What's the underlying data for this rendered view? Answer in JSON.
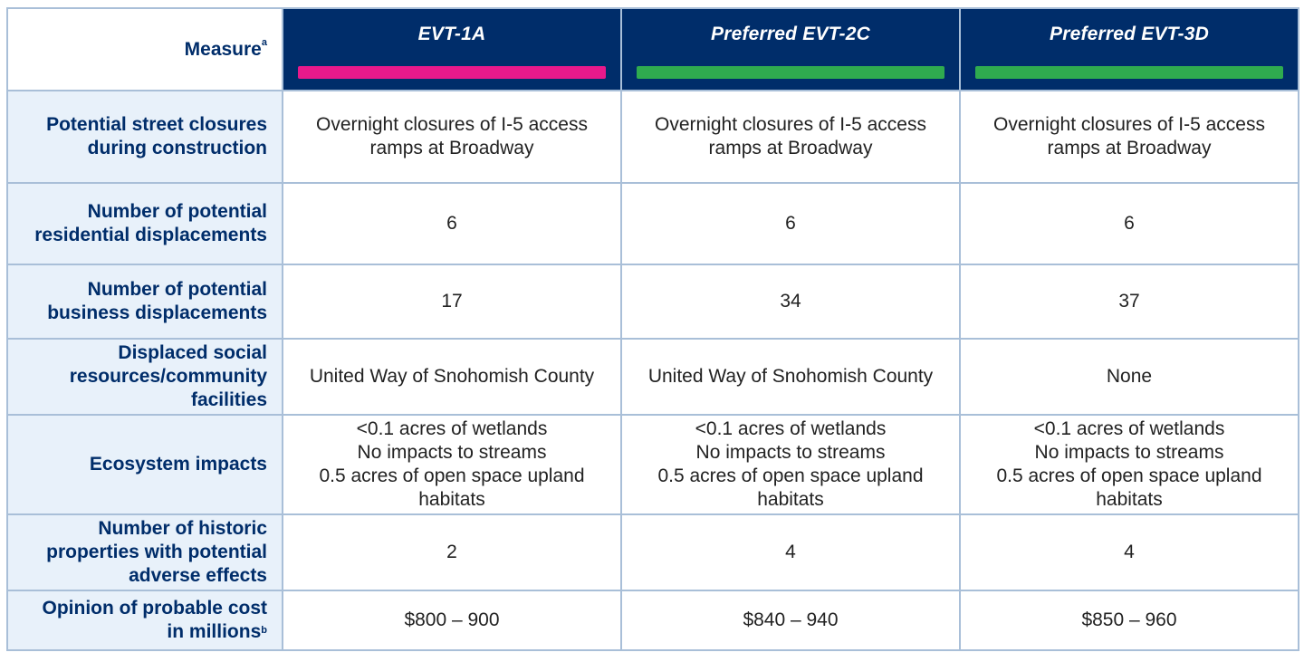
{
  "header": {
    "measure_label": "Measure",
    "measure_note": "a",
    "columns": [
      {
        "label": "EVT-1A",
        "bar_color": "#e8198b"
      },
      {
        "label": "Preferred EVT-2C",
        "bar_color": "#2fab4f"
      },
      {
        "label": "Preferred EVT-3D",
        "bar_color": "#2fab4f"
      }
    ]
  },
  "rows": [
    {
      "label": [
        "Potential street closures",
        "during construction"
      ],
      "values": [
        [
          "Overnight closures of I-5 access",
          "ramps at Broadway"
        ],
        [
          "Overnight closures of I-5 access",
          "ramps at Broadway"
        ],
        [
          "Overnight closures of I-5 access",
          "ramps at Broadway"
        ]
      ]
    },
    {
      "label": [
        "Number of potential",
        "residential displacements"
      ],
      "values": [
        [
          "6"
        ],
        [
          "6"
        ],
        [
          "6"
        ]
      ]
    },
    {
      "label": [
        "Number of potential",
        "business displacements"
      ],
      "values": [
        [
          "17"
        ],
        [
          "34"
        ],
        [
          "37"
        ]
      ]
    },
    {
      "label": [
        "Displaced social",
        "resources/community",
        "facilities"
      ],
      "values": [
        [
          "United Way of Snohomish County"
        ],
        [
          "United Way of Snohomish County"
        ],
        [
          "None"
        ]
      ]
    },
    {
      "label": [
        "Ecosystem impacts"
      ],
      "values": [
        [
          "<0.1 acres of wetlands",
          "No impacts to streams",
          "0.5 acres of open space upland",
          "habitats"
        ],
        [
          "<0.1 acres of wetlands",
          "No impacts to streams",
          "0.5 acres of open space upland",
          "habitats"
        ],
        [
          "<0.1 acres of wetlands",
          "No impacts to streams",
          "0.5 acres of open space upland",
          "habitats"
        ]
      ]
    },
    {
      "label": [
        "Number of historic",
        "properties with potential",
        "adverse effects"
      ],
      "values": [
        [
          "2"
        ],
        [
          "4"
        ],
        [
          "4"
        ]
      ]
    },
    {
      "label": [
        "Opinion of probable cost",
        "in millions"
      ],
      "label_note": "b",
      "values": [
        [
          "$800 – 900"
        ],
        [
          "$840 – 940"
        ],
        [
          "$850 – 960"
        ]
      ]
    }
  ]
}
